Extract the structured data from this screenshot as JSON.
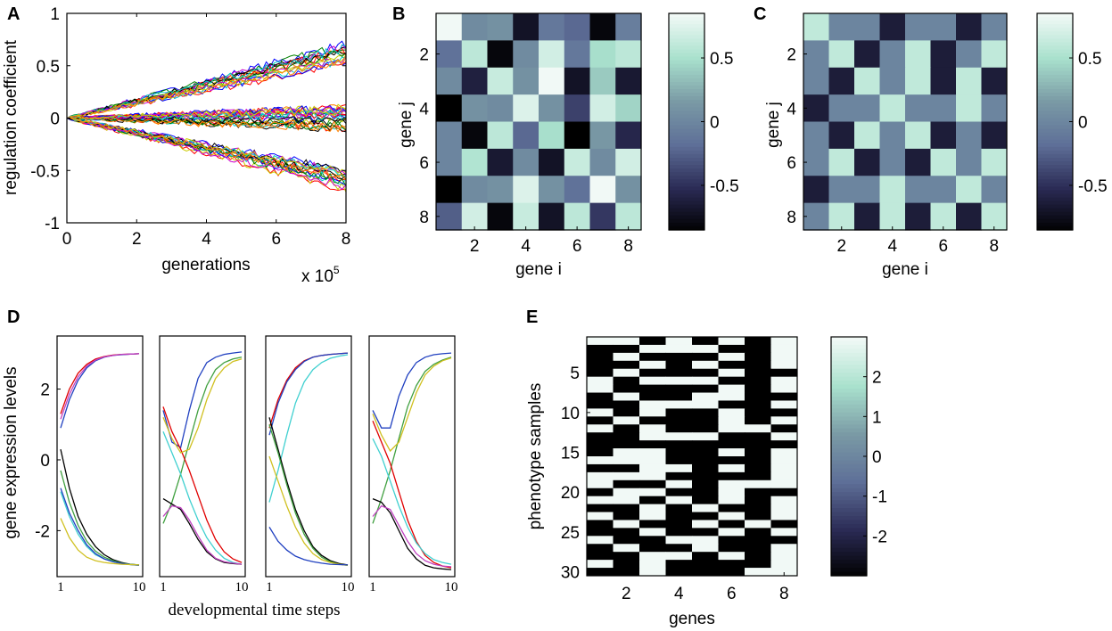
{
  "colors": {
    "cmap": [
      "#000000",
      "#2b2b55",
      "#5e6f98",
      "#7a9aa5",
      "#a9e1cd",
      "#f1f9f6"
    ]
  },
  "chart_data": [
    {
      "panel": "A",
      "type": "line",
      "xlabel": "generations",
      "ylabel": "regulation coefficient",
      "x_multiplier": "x 10",
      "x_multiplier_exp": "5",
      "xlim": [
        0,
        8
      ],
      "ylim": [
        -1,
        1
      ],
      "xticks": [
        "0",
        "2",
        "4",
        "6",
        "8"
      ],
      "yticks": [
        "1",
        "0.5",
        "0",
        "-0.5",
        "-1"
      ],
      "series_groups": [
        {
          "end_value": 0.62,
          "spread": 0.1,
          "count": 16
        },
        {
          "end_value": 0.0,
          "spread": 0.12,
          "count": 24
        },
        {
          "end_value": -0.58,
          "spread": 0.1,
          "count": 16
        }
      ],
      "series_colors": [
        "#ff0000",
        "#0000ff",
        "#008000",
        "#000000",
        "#00cccc",
        "#cc00cc",
        "#cccc00",
        "#ff8000"
      ]
    },
    {
      "panel": "B",
      "type": "heatmap",
      "xlabel": "gene i",
      "ylabel": "gene j",
      "xticks": [
        "2",
        "4",
        "6",
        "8"
      ],
      "yticks": [
        "2",
        "4",
        "6",
        "8"
      ],
      "colorbar_ticks": [
        "0.5",
        "0",
        "-0.5"
      ],
      "colorbar_range": [
        -0.85,
        0.85
      ],
      "values": [
        [
          0.85,
          0.05,
          0.1,
          -0.7,
          -0.1,
          -0.2,
          -0.8,
          -0.05
        ],
        [
          -0.15,
          0.6,
          -0.8,
          0.05,
          0.7,
          -0.1,
          0.5,
          0.6
        ],
        [
          0.05,
          -0.6,
          0.65,
          0.1,
          0.85,
          -0.7,
          0.4,
          -0.65
        ],
        [
          -0.85,
          0.1,
          0.05,
          0.75,
          0.1,
          -0.4,
          0.7,
          0.45
        ],
        [
          0.0,
          -0.8,
          0.6,
          -0.2,
          0.5,
          -0.85,
          0.15,
          -0.55
        ],
        [
          0.0,
          0.55,
          -0.65,
          0.05,
          -0.7,
          0.65,
          0.05,
          0.7
        ],
        [
          -0.85,
          0.05,
          0.1,
          0.75,
          0.1,
          -0.15,
          0.9,
          0.1
        ],
        [
          -0.25,
          0.7,
          -0.8,
          0.65,
          -0.7,
          0.6,
          -0.45,
          0.6
        ]
      ]
    },
    {
      "panel": "C",
      "type": "heatmap",
      "xlabel": "gene i",
      "ylabel": "gene j",
      "xticks": [
        "2",
        "4",
        "6",
        "8"
      ],
      "yticks": [
        "2",
        "4",
        "6",
        "8"
      ],
      "colorbar_ticks": [
        "0.5",
        "0",
        "-0.5"
      ],
      "colorbar_range": [
        -0.85,
        0.85
      ],
      "values": [
        [
          0.62,
          0.0,
          0.0,
          -0.62,
          0.0,
          0.0,
          -0.62,
          0.0
        ],
        [
          0.0,
          0.62,
          -0.62,
          0.0,
          0.62,
          -0.62,
          0.0,
          0.62
        ],
        [
          0.0,
          -0.62,
          0.62,
          0.0,
          0.62,
          -0.62,
          0.62,
          -0.62
        ],
        [
          -0.62,
          0.0,
          0.0,
          0.62,
          0.0,
          0.0,
          0.62,
          0.0
        ],
        [
          0.0,
          -0.62,
          0.62,
          0.0,
          0.62,
          -0.62,
          0.0,
          -0.62
        ],
        [
          0.0,
          0.62,
          -0.62,
          0.0,
          -0.62,
          0.62,
          0.0,
          0.62
        ],
        [
          -0.62,
          0.0,
          0.0,
          0.62,
          0.0,
          0.0,
          0.62,
          0.0
        ],
        [
          0.0,
          0.62,
          -0.62,
          0.62,
          -0.62,
          0.62,
          -0.62,
          0.62
        ]
      ]
    },
    {
      "panel": "D",
      "type": "line",
      "xlabel": "developmental time steps",
      "ylabel": "gene expression levels",
      "xlim": [
        1,
        10
      ],
      "ylim": [
        -3.3,
        3.5
      ],
      "xticks": [
        "1",
        "10"
      ],
      "yticks": [
        "2",
        "0",
        "-2"
      ],
      "subplots": [
        {
          "series": [
            {
              "color": "#e00000",
              "values": [
                1.3,
                2.0,
                2.45,
                2.7,
                2.85,
                2.92,
                2.96,
                2.98,
                2.99,
                3.0
              ]
            },
            {
              "color": "#2040c0",
              "values": [
                0.9,
                1.7,
                2.25,
                2.6,
                2.8,
                2.9,
                2.95,
                2.97,
                2.99,
                3.0
              ]
            },
            {
              "color": "#c040c0",
              "values": [
                1.15,
                1.85,
                2.35,
                2.65,
                2.82,
                2.91,
                2.95,
                2.98,
                2.99,
                3.0
              ]
            },
            {
              "color": "#000000",
              "values": [
                0.3,
                -0.8,
                -1.6,
                -2.1,
                -2.45,
                -2.68,
                -2.82,
                -2.9,
                -2.95,
                -2.97
              ]
            },
            {
              "color": "#40a040",
              "values": [
                -0.3,
                -1.2,
                -1.85,
                -2.3,
                -2.58,
                -2.75,
                -2.85,
                -2.92,
                -2.95,
                -2.97
              ]
            },
            {
              "color": "#40d0d0",
              "values": [
                -0.9,
                -1.6,
                -2.1,
                -2.45,
                -2.68,
                -2.8,
                -2.88,
                -2.93,
                -2.96,
                -2.98
              ]
            },
            {
              "color": "#2040c0",
              "values": [
                -0.8,
                -1.5,
                -2.0,
                -2.4,
                -2.65,
                -2.8,
                -2.88,
                -2.93,
                -2.96,
                -2.98
              ]
            },
            {
              "color": "#d0c020",
              "values": [
                -1.65,
                -2.2,
                -2.55,
                -2.75,
                -2.85,
                -2.9,
                -2.93,
                -2.95,
                -2.96,
                -2.97
              ]
            }
          ]
        },
        {
          "series": [
            {
              "color": "#2040c0",
              "values": [
                1.4,
                0.5,
                0.35,
                1.4,
                2.3,
                2.75,
                2.9,
                2.98,
                3.02,
                3.05
              ]
            },
            {
              "color": "#40a040",
              "values": [
                -1.8,
                -1.2,
                -0.4,
                0.5,
                1.4,
                2.1,
                2.55,
                2.75,
                2.85,
                2.9
              ]
            },
            {
              "color": "#e00000",
              "values": [
                1.5,
                0.8,
                0.3,
                -0.3,
                -1.0,
                -1.7,
                -2.25,
                -2.6,
                -2.8,
                -2.9
              ]
            },
            {
              "color": "#d0c020",
              "values": [
                1.2,
                0.6,
                0.2,
                0.3,
                0.9,
                1.7,
                2.3,
                2.6,
                2.78,
                2.85
              ]
            },
            {
              "color": "#40d0d0",
              "values": [
                0.8,
                0.2,
                -0.4,
                -1.1,
                -1.7,
                -2.2,
                -2.55,
                -2.78,
                -2.9,
                -2.95
              ]
            },
            {
              "color": "#000000",
              "values": [
                -1.1,
                -1.25,
                -1.4,
                -1.8,
                -2.25,
                -2.6,
                -2.8,
                -2.9,
                -2.93,
                -2.95
              ]
            },
            {
              "color": "#c040c0",
              "values": [
                -1.6,
                -1.3,
                -1.35,
                -1.7,
                -2.15,
                -2.55,
                -2.78,
                -2.88,
                -2.92,
                -2.95
              ]
            }
          ]
        },
        {
          "series": [
            {
              "color": "#e00000",
              "values": [
                0.9,
                1.7,
                2.25,
                2.6,
                2.8,
                2.9,
                2.95,
                2.98,
                3.0,
                3.02
              ]
            },
            {
              "color": "#2040c0",
              "values": [
                0.7,
                1.6,
                2.2,
                2.55,
                2.78,
                2.9,
                2.95,
                2.98,
                3.0,
                3.02
              ]
            },
            {
              "color": "#40d0d0",
              "values": [
                -1.2,
                -0.3,
                0.7,
                1.6,
                2.2,
                2.55,
                2.75,
                2.87,
                2.93,
                2.97
              ]
            },
            {
              "color": "#000000",
              "values": [
                1.2,
                0.3,
                -0.6,
                -1.4,
                -2.0,
                -2.45,
                -2.7,
                -2.85,
                -2.93,
                -2.97
              ]
            },
            {
              "color": "#40a040",
              "values": [
                1.0,
                0.2,
                -0.7,
                -1.5,
                -2.1,
                -2.5,
                -2.75,
                -2.88,
                -2.95,
                -2.98
              ]
            },
            {
              "color": "#d0c020",
              "values": [
                0.1,
                -0.6,
                -1.3,
                -1.9,
                -2.35,
                -2.65,
                -2.82,
                -2.9,
                -2.95,
                -2.98
              ]
            },
            {
              "color": "#2040c0",
              "values": [
                -1.9,
                -2.3,
                -2.55,
                -2.72,
                -2.82,
                -2.88,
                -2.92,
                -2.95,
                -2.96,
                -2.97
              ]
            }
          ]
        },
        {
          "series": [
            {
              "color": "#2040c0",
              "values": [
                1.4,
                0.9,
                0.9,
                1.8,
                2.4,
                2.75,
                2.9,
                2.97,
                3.0,
                3.02
              ]
            },
            {
              "color": "#40a040",
              "values": [
                -1.8,
                -1.1,
                -0.3,
                0.6,
                1.5,
                2.1,
                2.5,
                2.7,
                2.82,
                2.9
              ]
            },
            {
              "color": "#d0c020",
              "values": [
                1.3,
                0.7,
                0.25,
                0.5,
                1.2,
                1.9,
                2.4,
                2.65,
                2.8,
                2.88
              ]
            },
            {
              "color": "#e00000",
              "values": [
                1.1,
                0.5,
                -0.1,
                -0.9,
                -1.7,
                -2.3,
                -2.7,
                -2.9,
                -3.0,
                -3.05
              ]
            },
            {
              "color": "#40d0d0",
              "values": [
                0.6,
                0.1,
                -0.6,
                -1.3,
                -1.9,
                -2.35,
                -2.65,
                -2.82,
                -2.9,
                -2.95
              ]
            },
            {
              "color": "#000000",
              "values": [
                -1.1,
                -1.2,
                -1.5,
                -2.0,
                -2.5,
                -2.8,
                -2.98,
                -3.05,
                -3.08,
                -3.1
              ]
            },
            {
              "color": "#c040c0",
              "values": [
                -1.6,
                -1.3,
                -1.4,
                -1.85,
                -2.3,
                -2.65,
                -2.85,
                -2.95,
                -3.0,
                -3.02
              ]
            }
          ]
        }
      ]
    },
    {
      "panel": "E",
      "type": "heatmap",
      "xlabel": "genes",
      "ylabel": "phenotype samples",
      "xticks": [
        "2",
        "4",
        "6",
        "8"
      ],
      "yticks": [
        "5",
        "10",
        "15",
        "20",
        "25",
        "30"
      ],
      "colorbar_ticks": [
        "2",
        "1",
        "0",
        "-1",
        "-2"
      ],
      "colorbar_range": [
        -3,
        3
      ],
      "binary_rows": [
        "11010101",
        "00111001",
        "01000101",
        "00101001",
        "01000100",
        "10111001",
        "10000101",
        "01001100",
        "00111001",
        "10100100",
        "01000101",
        "10100110",
        "00111001",
        "00000000",
        "01100101",
        "11100001",
        "00110101",
        "11100001",
        "10010111",
        "01100100",
        "11010101",
        "00101001",
        "10100101",
        "01001010",
        "00100101",
        "10011000",
        "01001001",
        "00110101",
        "10100001",
        "00100011"
      ]
    }
  ],
  "panel_labels": [
    "A",
    "B",
    "C",
    "D",
    "E"
  ]
}
